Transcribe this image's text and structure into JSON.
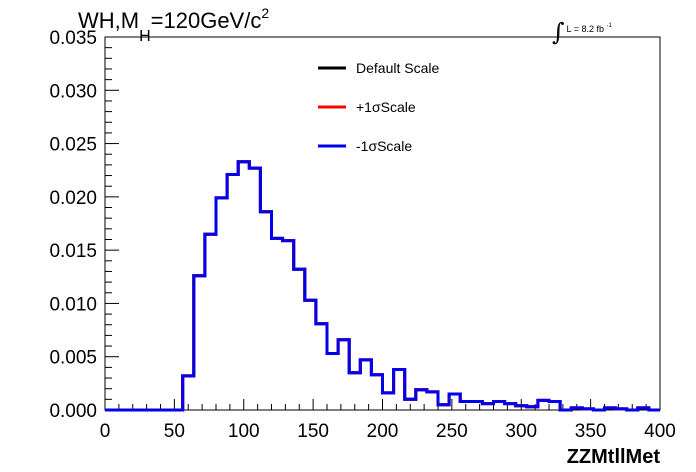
{
  "title": {
    "prefix": "WH,M",
    "subscript": "H",
    "middle": "=120GeV/c",
    "superscript": "2"
  },
  "lumi": {
    "integral": "∫",
    "text": "L = 8.2 fb",
    "exponent": "-1"
  },
  "chart_data": {
    "type": "line",
    "style": "step-histogram",
    "xlabel": "ZZMtllMet",
    "ylabel": "",
    "xlim": [
      0,
      400
    ],
    "ylim": [
      0,
      0.035
    ],
    "xticks": [
      0,
      50,
      100,
      150,
      200,
      250,
      300,
      350,
      400
    ],
    "yticks": [
      0.0,
      0.005,
      0.01,
      0.015,
      0.02,
      0.025,
      0.03,
      0.035
    ],
    "ytick_labels": [
      "0.000",
      "0.005",
      "0.010",
      "0.015",
      "0.020",
      "0.025",
      "0.030",
      "0.035"
    ],
    "bin_edges": [
      0,
      8,
      16,
      24,
      32,
      40,
      48,
      56,
      64,
      72,
      80,
      88,
      96,
      104,
      112,
      120,
      128,
      136,
      144,
      152,
      160,
      168,
      176,
      184,
      192,
      200,
      208,
      216,
      224,
      232,
      240,
      248,
      256,
      264,
      272,
      280,
      288,
      296,
      304,
      312,
      320,
      328,
      336,
      344,
      352,
      360,
      368,
      376,
      384,
      392,
      400
    ],
    "legend_placement": "top-center",
    "series": [
      {
        "name": "Default Scale",
        "color": "#000000",
        "values": [
          0,
          0,
          0,
          0,
          0,
          0,
          0,
          0.0032,
          0.0126,
          0.0165,
          0.0199,
          0.0221,
          0.0233,
          0.0227,
          0.0186,
          0.0161,
          0.0159,
          0.0132,
          0.0103,
          0.0081,
          0.0053,
          0.0066,
          0.0035,
          0.0047,
          0.0033,
          0.0016,
          0.0038,
          0.001,
          0.0019,
          0.0017,
          0.0005,
          0.0015,
          0.0008,
          0.0008,
          0.0006,
          0.0008,
          0.0006,
          0.0004,
          0.0003,
          0.0009,
          0.0008,
          0,
          0.0002,
          0.0001,
          0,
          0.0002,
          0.0001,
          0,
          0.0002,
          0
        ]
      },
      {
        "name": "+1σScale",
        "color": "#ff0000",
        "values": [
          0,
          0,
          0,
          0,
          0,
          0,
          0,
          0.0032,
          0.0126,
          0.0165,
          0.0199,
          0.0221,
          0.0233,
          0.0227,
          0.0186,
          0.0161,
          0.0159,
          0.0132,
          0.0103,
          0.0081,
          0.0053,
          0.0066,
          0.0035,
          0.0047,
          0.0033,
          0.0016,
          0.0038,
          0.001,
          0.0019,
          0.0017,
          0.0005,
          0.0015,
          0.0008,
          0.0008,
          0.0006,
          0.0008,
          0.0006,
          0.0004,
          0.0003,
          0.0009,
          0.0008,
          0,
          0.0002,
          0.0001,
          0,
          0.0002,
          0.0001,
          0,
          0.0002,
          0
        ]
      },
      {
        "name": "-1σScale",
        "color": "#0000ee",
        "values": [
          0,
          0,
          0,
          0,
          0,
          0,
          0,
          0.0032,
          0.0126,
          0.0165,
          0.0199,
          0.0221,
          0.0233,
          0.0227,
          0.0186,
          0.0161,
          0.0159,
          0.0132,
          0.0103,
          0.0081,
          0.0053,
          0.0066,
          0.0035,
          0.0047,
          0.0033,
          0.0016,
          0.0038,
          0.001,
          0.0019,
          0.0017,
          0.0005,
          0.0015,
          0.0008,
          0.0008,
          0.0006,
          0.0008,
          0.0006,
          0.0004,
          0.0003,
          0.0009,
          0.0008,
          0,
          0.0002,
          0.0001,
          0,
          0.0002,
          0.0001,
          0,
          0.0002,
          0
        ]
      }
    ]
  }
}
